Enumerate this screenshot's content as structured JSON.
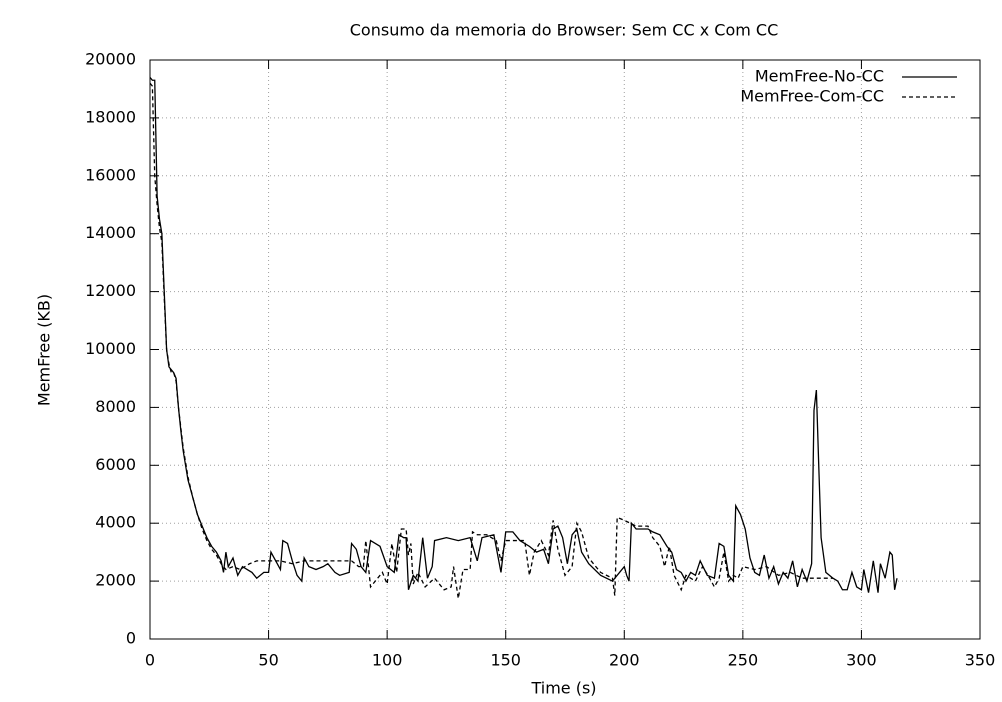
{
  "chart_data": {
    "type": "line",
    "title": "Consumo da memoria do Browser: Sem CC x Com CC",
    "x_label": "Time (s)",
    "y_label": "MemFree (KB)",
    "xlim": [
      0,
      350
    ],
    "xticks": [
      0,
      50,
      100,
      150,
      200,
      250,
      300,
      350
    ],
    "ylim": [
      0,
      20000
    ],
    "yticks": [
      0,
      2000,
      4000,
      6000,
      8000,
      10000,
      12000,
      14000,
      16000,
      18000,
      20000
    ],
    "grid": true,
    "legend": "top-right",
    "series": [
      {
        "name": "MemFree-No-CC",
        "color": "#000000",
        "line_style": "solid",
        "x": [
          0,
          1,
          2,
          3,
          4,
          5,
          6,
          7,
          8,
          9,
          10,
          11,
          12,
          13,
          14,
          15,
          16,
          18,
          20,
          22,
          24,
          26,
          28,
          30,
          31,
          32,
          33,
          35,
          37,
          39,
          41,
          43,
          45,
          48,
          50,
          51,
          53,
          55,
          56,
          58,
          60,
          62,
          64,
          65,
          67,
          70,
          73,
          75,
          78,
          80,
          84,
          85,
          87,
          89,
          91,
          93,
          95,
          97,
          100,
          103,
          105,
          107,
          108,
          109,
          111,
          113,
          115,
          117,
          119,
          120,
          125,
          130,
          135,
          138,
          140,
          145,
          148,
          150,
          153,
          156,
          160,
          163,
          166,
          168,
          170,
          172,
          174,
          176,
          178,
          180,
          182,
          185,
          190,
          195,
          198,
          200,
          201,
          202,
          203,
          205,
          210,
          212,
          215,
          218,
          220,
          222,
          224,
          226,
          228,
          230,
          232,
          235,
          238,
          240,
          242,
          244,
          246,
          247,
          249,
          251,
          253,
          255,
          257,
          259,
          261,
          263,
          265,
          267,
          269,
          271,
          273,
          275,
          277,
          279,
          280,
          281,
          282,
          283,
          285,
          288,
          290,
          292,
          294,
          296,
          298,
          300,
          301,
          303,
          305,
          307,
          308,
          310,
          312,
          313,
          314,
          315
        ],
        "values": [
          19400,
          19300,
          19300,
          15300,
          14500,
          14000,
          12000,
          10000,
          9400,
          9300,
          9200,
          9000,
          8000,
          7200,
          6500,
          6000,
          5500,
          4900,
          4300,
          3900,
          3500,
          3200,
          3000,
          2700,
          2300,
          3000,
          2500,
          2800,
          2200,
          2500,
          2400,
          2300,
          2100,
          2300,
          2300,
          3000,
          2700,
          2400,
          3400,
          3300,
          2700,
          2200,
          2000,
          2800,
          2500,
          2400,
          2500,
          2600,
          2300,
          2200,
          2300,
          3300,
          3100,
          2500,
          2300,
          3400,
          3300,
          3200,
          2500,
          2300,
          3600,
          3500,
          3500,
          1700,
          2200,
          2000,
          3500,
          2100,
          2500,
          3400,
          3500,
          3400,
          3500,
          2700,
          3500,
          3600,
          2300,
          3700,
          3700,
          3400,
          3200,
          3000,
          3100,
          2600,
          3800,
          3900,
          3500,
          2600,
          3600,
          3800,
          3000,
          2600,
          2200,
          2000,
          2300,
          2500,
          2200,
          2000,
          4000,
          3800,
          3800,
          3700,
          3600,
          3200,
          3000,
          2400,
          2300,
          2000,
          2300,
          2200,
          2700,
          2200,
          2100,
          3300,
          3200,
          2200,
          2000,
          4600,
          4300,
          3800,
          2800,
          2300,
          2200,
          2900,
          2100,
          2500,
          1900,
          2300,
          2100,
          2700,
          1800,
          2400,
          2000,
          2600,
          7900,
          8600,
          6000,
          3500,
          2300,
          2100,
          2000,
          1700,
          1700,
          2300,
          1800,
          1700,
          2400,
          1600,
          2700,
          1600,
          2600,
          2100,
          3000,
          2900,
          1700,
          2100
        ]
      },
      {
        "name": "MemFree-Com-CC",
        "color": "#000000",
        "line_style": "dashed",
        "x": [
          0,
          1,
          2,
          3,
          4,
          5,
          6,
          7,
          8,
          9,
          10,
          11,
          12,
          14,
          16,
          18,
          20,
          22,
          24,
          26,
          28,
          30,
          32,
          35,
          38,
          40,
          42,
          45,
          55,
          60,
          65,
          75,
          85,
          88,
          90,
          91,
          93,
          95,
          98,
          100,
          102,
          104,
          106,
          108,
          109,
          110,
          111,
          113,
          116,
          120,
          124,
          127,
          128,
          130,
          132,
          135,
          136,
          138,
          142,
          146,
          148,
          150,
          154,
          158,
          160,
          162,
          165,
          168,
          170,
          172,
          175,
          178,
          180,
          182,
          185,
          190,
          195,
          196,
          197,
          200,
          205,
          210,
          212,
          215,
          217,
          219,
          221,
          224,
          226,
          230,
          233,
          236,
          238,
          240,
          242,
          244,
          246,
          248,
          250,
          255,
          260,
          265,
          270,
          275,
          280,
          285,
          288
        ],
        "values": [
          19200,
          19100,
          16000,
          15000,
          14200,
          13700,
          11800,
          10000,
          9500,
          9200,
          9200,
          8900,
          8000,
          6600,
          5600,
          4900,
          4300,
          3800,
          3400,
          3100,
          2900,
          2600,
          2400,
          2500,
          2400,
          2500,
          2600,
          2700,
          2700,
          2600,
          2700,
          2700,
          2700,
          2500,
          2500,
          3400,
          1800,
          2000,
          2300,
          1900,
          3300,
          2300,
          3800,
          3800,
          2900,
          3300,
          1900,
          2300,
          1800,
          2100,
          1700,
          1800,
          2500,
          1400,
          2400,
          2400,
          3700,
          3600,
          3600,
          3400,
          2700,
          3400,
          3400,
          3400,
          2200,
          3000,
          3400,
          2900,
          4100,
          3100,
          2200,
          2500,
          4000,
          3700,
          2800,
          2300,
          2100,
          1500,
          4200,
          4100,
          3900,
          3900,
          3500,
          3200,
          2500,
          3200,
          2200,
          1700,
          2200,
          2000,
          2500,
          2100,
          1800,
          2100,
          3000,
          2000,
          2200,
          2100,
          2500,
          2400,
          2500,
          2200,
          2300,
          2100,
          2100,
          2100,
          2100
        ]
      }
    ]
  }
}
